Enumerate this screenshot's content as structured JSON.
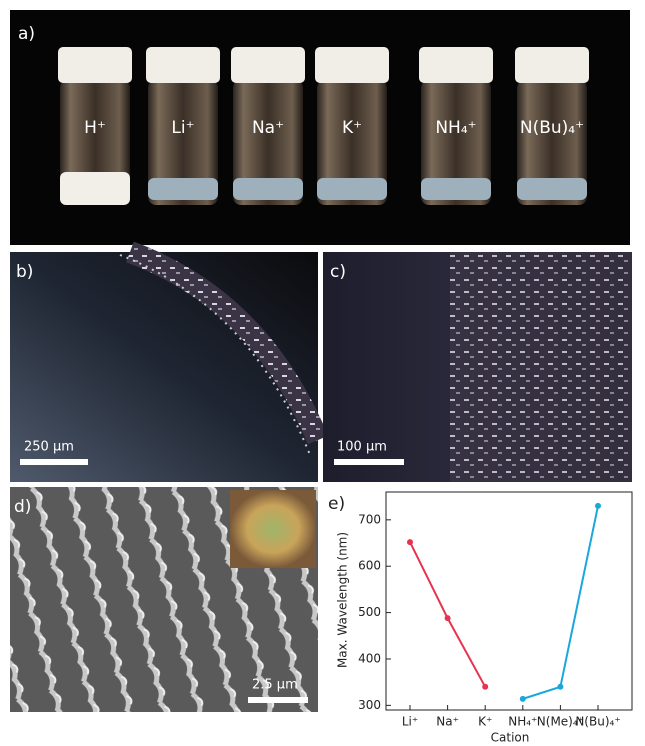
{
  "panels": {
    "a": {
      "label": "a)",
      "samples": [
        "H⁺",
        "Li⁺",
        "Na⁺",
        "K⁺",
        "NH₄⁺",
        "N(Bu)₄⁺"
      ]
    },
    "b": {
      "label": "b)",
      "scale_bar": "250 µm"
    },
    "c": {
      "label": "c)",
      "scale_bar": "100 µm"
    },
    "d": {
      "label": "d)",
      "scale_bar": "2.5 µm"
    }
  },
  "chart_data": {
    "type": "line",
    "label": "e)",
    "categories": [
      "Li⁺",
      "Na⁺",
      "K⁺",
      "NH₄⁺",
      "N(Me)₄⁺",
      "N(Bu)₄⁺"
    ],
    "series": [
      {
        "color": "#e8334f",
        "values": [
          652,
          488,
          340,
          null,
          null,
          null
        ]
      },
      {
        "color": "#1aa7dc",
        "values": [
          null,
          null,
          null,
          314,
          340,
          730
        ]
      }
    ],
    "ylim": [
      290,
      760
    ],
    "yticks": [
      300,
      400,
      500,
      600,
      700
    ],
    "y_label": "Max. Wavelength (nm)",
    "x_label": "Cation"
  }
}
